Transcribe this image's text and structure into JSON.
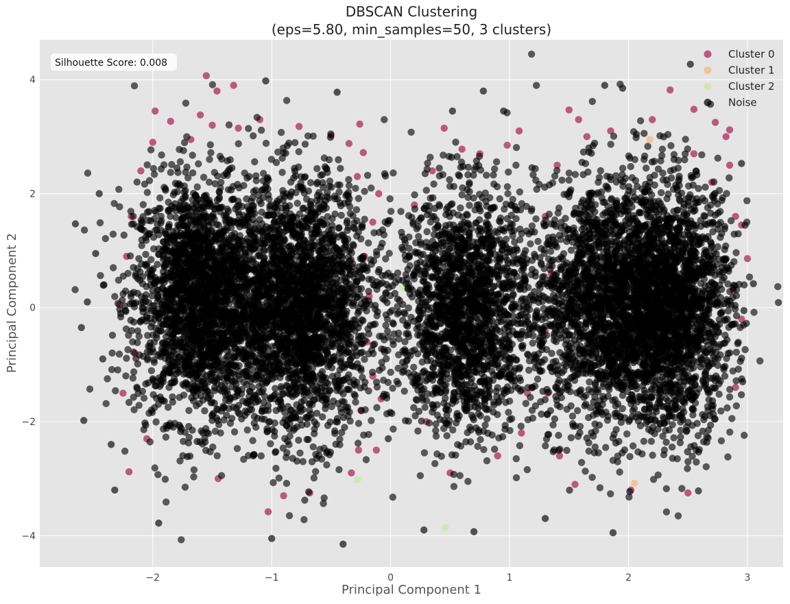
{
  "chart_data": {
    "type": "scatter",
    "title_line1": "DBSCAN Clustering",
    "title_line2": "(eps=5.80, min_samples=50, 3 clusters)",
    "xlabel": "Principal Component 1",
    "ylabel": "Principal Component 2",
    "xlim": [
      -2.95,
      3.3
    ],
    "ylim": [
      -4.55,
      4.7
    ],
    "xticks": [
      -2,
      -1,
      0,
      1,
      2,
      3
    ],
    "xtick_labels": [
      "−2",
      "−1",
      "0",
      "1",
      "2",
      "3"
    ],
    "yticks": [
      -4,
      -2,
      0,
      2,
      4
    ],
    "ytick_labels": [
      "−4",
      "−2",
      "0",
      "2",
      "4"
    ],
    "grid": true,
    "legend_position": "top-right",
    "annotation": "Silhouette Score: 0.008",
    "series": [
      {
        "name": "Cluster 0",
        "color": "#b5406e",
        "points": [
          [
            -1.55,
            4.07
          ],
          [
            -1.46,
            3.8
          ],
          [
            -1.32,
            3.9
          ],
          [
            -1.98,
            3.45
          ],
          [
            -1.6,
            3.38
          ],
          [
            -1.5,
            3.2
          ],
          [
            -1.85,
            3.27
          ],
          [
            -1.28,
            3.15
          ],
          [
            -1.1,
            3.3
          ],
          [
            -0.77,
            3.18
          ],
          [
            -0.5,
            3.02
          ],
          [
            -0.35,
            2.88
          ],
          [
            -0.26,
            3.22
          ],
          [
            -0.28,
            2.3
          ],
          [
            -0.1,
            2.0
          ],
          [
            -0.15,
            1.5
          ],
          [
            -0.22,
            0.9
          ],
          [
            -0.18,
            0.2
          ],
          [
            -0.2,
            -0.6
          ],
          [
            -0.15,
            -1.2
          ],
          [
            -0.25,
            -1.8
          ],
          [
            -0.12,
            -2.5
          ],
          [
            -0.33,
            -2.9
          ],
          [
            -2.2,
            -2.88
          ],
          [
            -2.05,
            -2.3
          ],
          [
            -2.25,
            -1.5
          ],
          [
            -2.15,
            -0.8
          ],
          [
            -2.28,
            0.05
          ],
          [
            -2.22,
            0.9
          ],
          [
            -2.18,
            1.6
          ],
          [
            -2.1,
            2.4
          ],
          [
            -2.0,
            2.9
          ],
          [
            -1.03,
            -3.58
          ],
          [
            -0.68,
            -3.25
          ],
          [
            -1.45,
            -3.0
          ],
          [
            -0.9,
            -3.3
          ],
          [
            -0.27,
            -2.5
          ],
          [
            -0.08,
            -1.6
          ],
          [
            -0.23,
            2.72
          ],
          [
            -1.68,
            2.95
          ],
          [
            0.45,
            3.15
          ],
          [
            0.6,
            2.78
          ],
          [
            0.75,
            2.7
          ],
          [
            0.98,
            2.85
          ],
          [
            1.08,
            3.1
          ],
          [
            0.35,
            2.4
          ],
          [
            0.2,
            1.8
          ],
          [
            0.3,
            -2.0
          ],
          [
            0.5,
            -2.9
          ],
          [
            0.9,
            -2.6
          ],
          [
            1.1,
            -2.2
          ],
          [
            1.15,
            -1.5
          ],
          [
            1.5,
            3.47
          ],
          [
            1.58,
            3.3
          ],
          [
            1.85,
            3.1
          ],
          [
            2.35,
            3.82
          ],
          [
            2.55,
            3.48
          ],
          [
            2.73,
            3.25
          ],
          [
            2.82,
            3.0
          ],
          [
            2.85,
            3.12
          ],
          [
            2.9,
            1.6
          ],
          [
            2.95,
            1.45
          ],
          [
            3.0,
            0.86
          ],
          [
            2.9,
            -1.4
          ],
          [
            2.95,
            -0.2
          ],
          [
            2.5,
            -3.25
          ],
          [
            2.02,
            -3.2
          ],
          [
            1.55,
            -3.1
          ],
          [
            2.55,
            2.7
          ],
          [
            2.7,
            2.2
          ],
          [
            1.4,
            2.5
          ],
          [
            1.3,
            1.6
          ],
          [
            1.35,
            0.6
          ],
          [
            1.3,
            -0.4
          ],
          [
            1.32,
            -1.5
          ],
          [
            1.42,
            -2.6
          ],
          [
            2.85,
            2.5
          ],
          [
            2.88,
            0.3
          ],
          [
            1.65,
            3.0
          ],
          [
            2.2,
            3.3
          ]
        ]
      },
      {
        "name": "Cluster 1",
        "color": "#f2c187",
        "points": [
          [
            2.18,
            2.95
          ],
          [
            2.05,
            -3.08
          ],
          [
            0.62,
            -0.55
          ]
        ]
      },
      {
        "name": "Cluster 2",
        "color": "#cde8a6",
        "points": [
          [
            0.46,
            -3.86
          ],
          [
            -0.28,
            -3.02
          ],
          [
            0.1,
            0.35
          ]
        ]
      },
      {
        "name": "Noise",
        "color": "#000000",
        "blobs": [
          {
            "cx": -1.6,
            "cy": 0.15,
            "sx": 0.28,
            "sy": 1.05,
            "n": 2300
          },
          {
            "cx": -0.75,
            "cy": 0.0,
            "sx": 0.3,
            "sy": 1.1,
            "n": 2400
          },
          {
            "cx": 0.63,
            "cy": -0.05,
            "sx": 0.29,
            "sy": 1.05,
            "n": 1900
          },
          {
            "cx": 1.82,
            "cy": 0.05,
            "sx": 0.3,
            "sy": 1.08,
            "n": 2100
          },
          {
            "cx": 2.4,
            "cy": 0.0,
            "sx": 0.24,
            "sy": 1.08,
            "n": 1800
          }
        ],
        "outliers": [
          [
            -2.65,
            1.47
          ],
          [
            -2.55,
            0.1
          ],
          [
            -2.6,
            -0.35
          ],
          [
            -2.58,
            -1.98
          ],
          [
            -1.95,
            -3.78
          ],
          [
            -1.05,
            3.98
          ],
          [
            -0.45,
            3.78
          ],
          [
            -0.4,
            -4.15
          ],
          [
            -1.0,
            -4.05
          ],
          [
            0.28,
            -3.9
          ],
          [
            0.7,
            -3.93
          ],
          [
            0.78,
            3.8
          ],
          [
            1.3,
            -3.7
          ],
          [
            1.87,
            -3.95
          ],
          [
            2.52,
            4.27
          ],
          [
            2.95,
            2.53
          ],
          [
            3.05,
            0.42
          ],
          [
            2.97,
            -0.05
          ],
          [
            2.96,
            -1.3
          ],
          [
            1.8,
            3.9
          ],
          [
            1.95,
            3.85
          ],
          [
            0.52,
            3.45
          ],
          [
            0.95,
            3.45
          ],
          [
            -2.48,
            0.95
          ],
          [
            -2.42,
            -0.9
          ],
          [
            -2.45,
            2.0
          ],
          [
            -2.35,
            -2.4
          ],
          [
            -2.32,
            -3.2
          ],
          [
            -0.05,
            2.35
          ],
          [
            -0.02,
            -2.3
          ]
        ]
      }
    ]
  }
}
